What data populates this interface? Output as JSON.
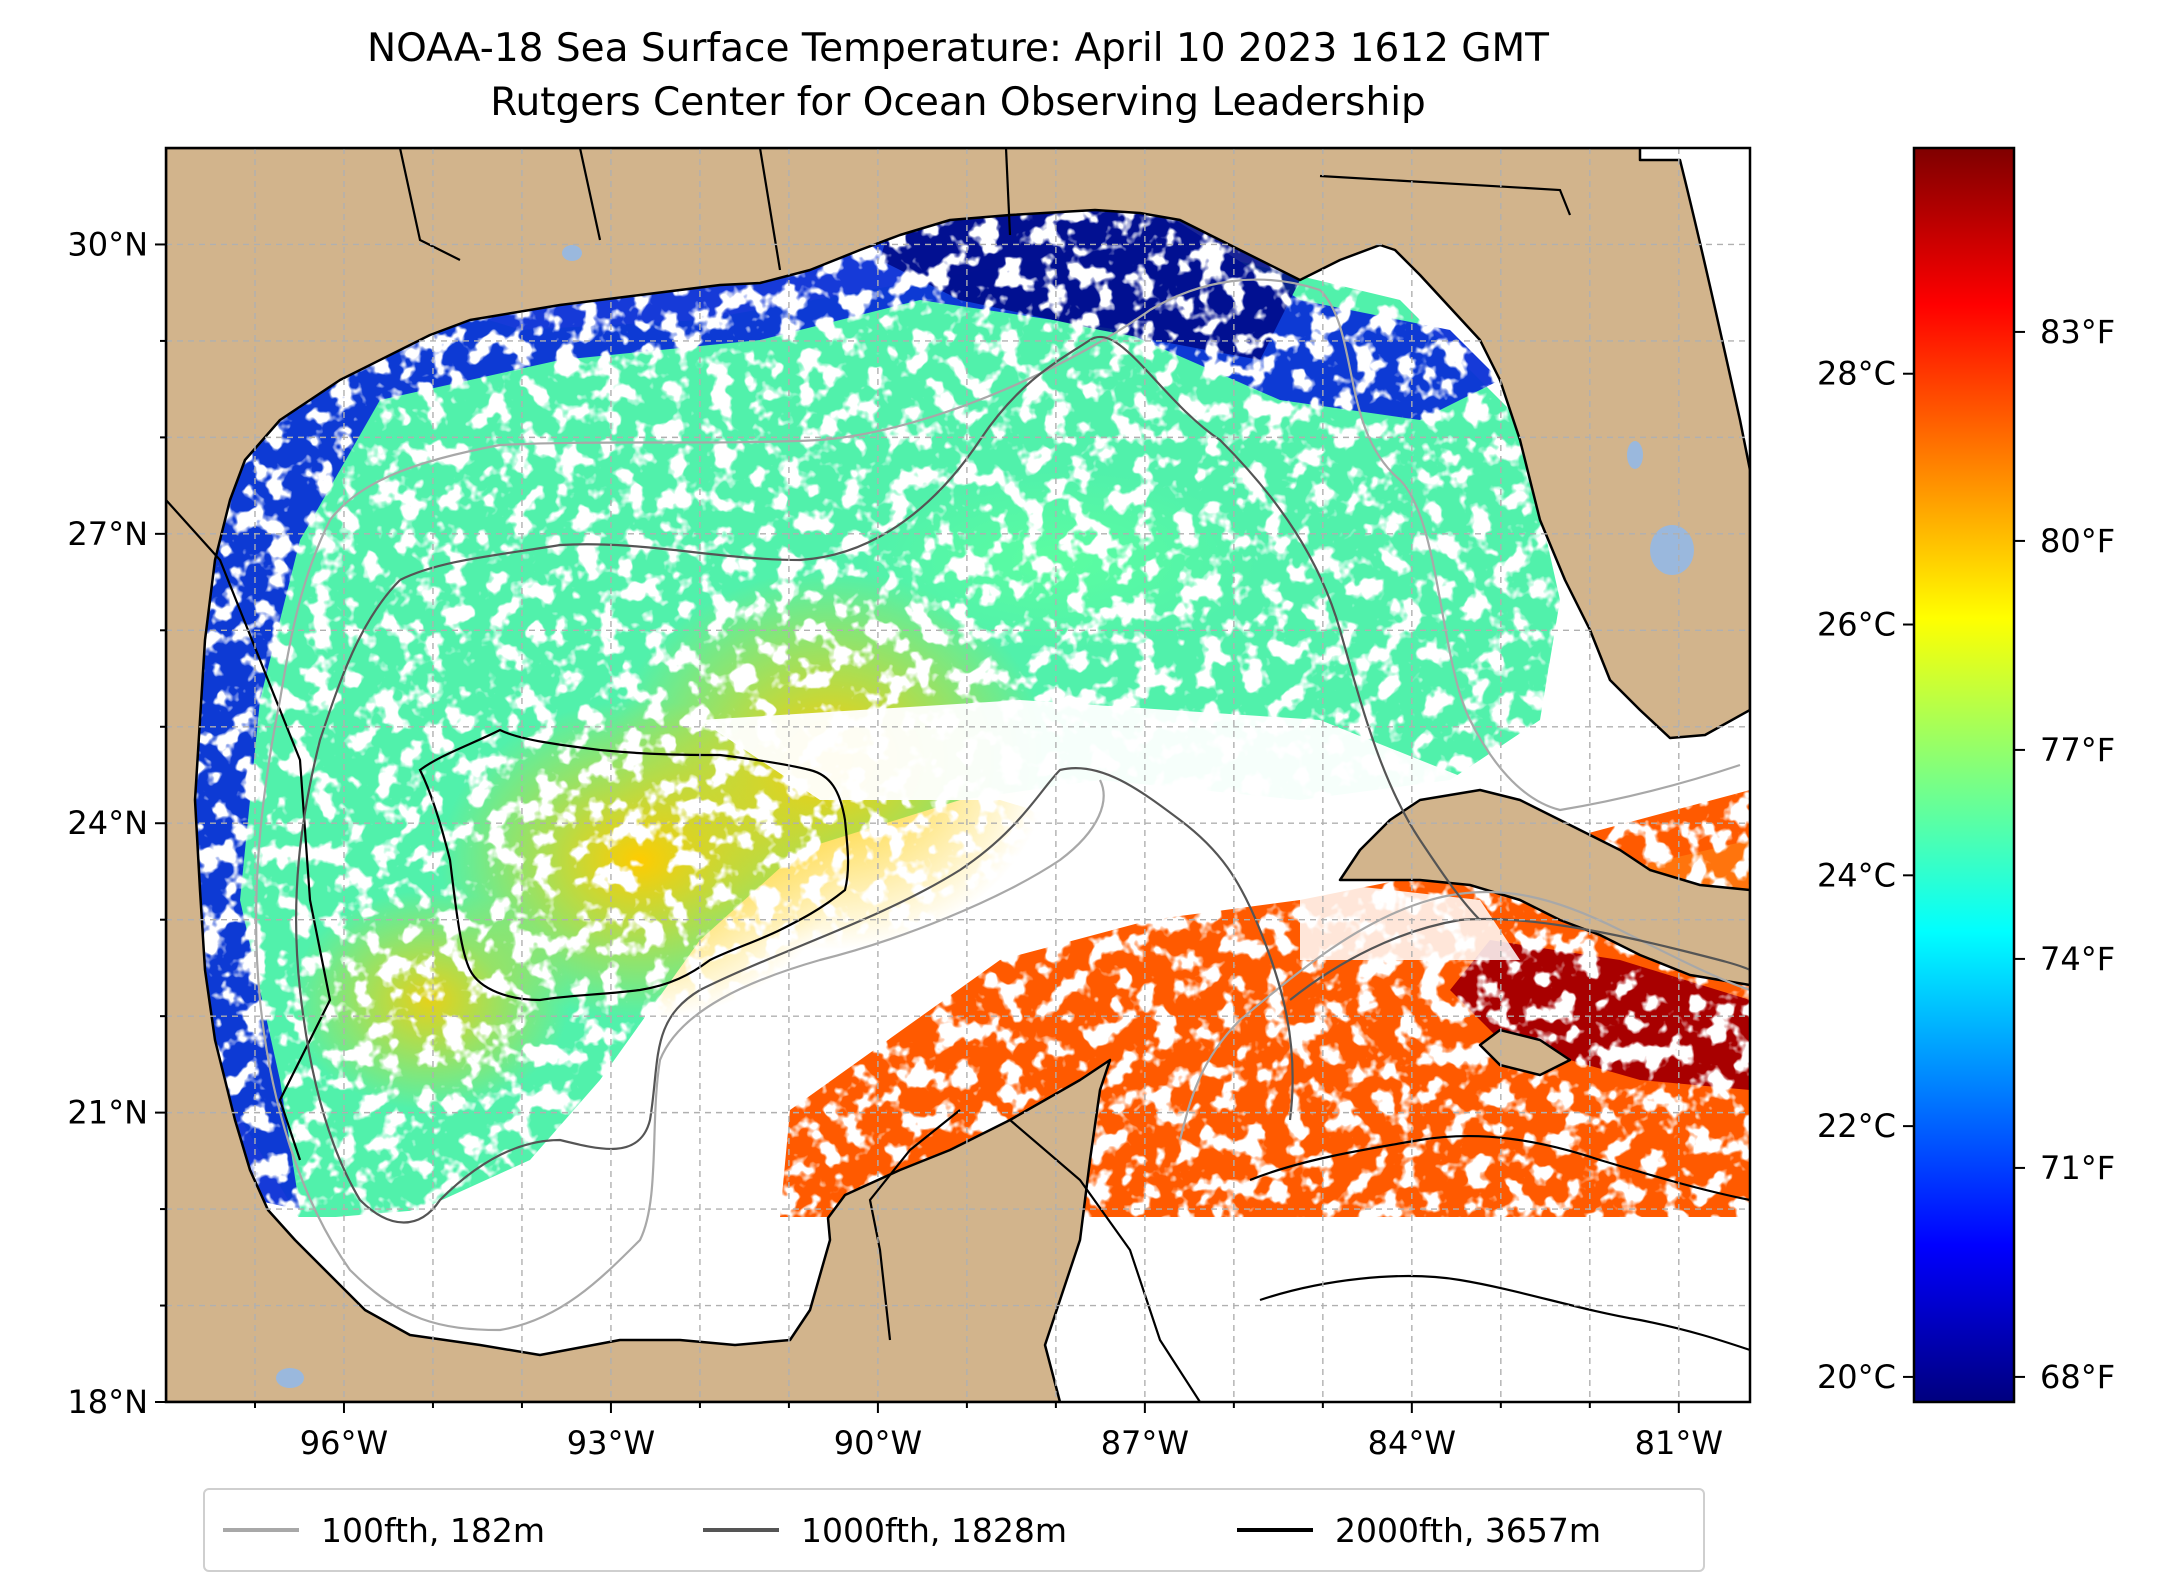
{
  "title": {
    "line1": "NOAA-18 Sea Surface Temperature: April 10 2023 1612 GMT",
    "line2": "Rutgers Center for Ocean Observing Leadership"
  },
  "map": {
    "lon_range": [
      -98,
      -80.2
    ],
    "lat_range": [
      18,
      31
    ],
    "colors": {
      "land": "#d2b48c",
      "no_data": "#ffffff",
      "lakes": "#9ab8dd",
      "gridline": "#b0b0b0"
    },
    "lon_ticks": [
      {
        "value": -96,
        "label": "96°W"
      },
      {
        "value": -93,
        "label": "93°W"
      },
      {
        "value": -90,
        "label": "90°W"
      },
      {
        "value": -87,
        "label": "87°W"
      },
      {
        "value": -84,
        "label": "84°W"
      },
      {
        "value": -81,
        "label": "81°W"
      }
    ],
    "lat_ticks": [
      {
        "value": 18,
        "label": "18°N"
      },
      {
        "value": 21,
        "label": "21°N"
      },
      {
        "value": 24,
        "label": "24°N"
      },
      {
        "value": 27,
        "label": "27°N"
      },
      {
        "value": 30,
        "label": "30°N"
      }
    ],
    "data_gap_below_lat": 20
  },
  "colorbar": {
    "colormap": "jet",
    "range_c": [
      19.8,
      29.8
    ],
    "celsius_ticks": [
      {
        "value": 20,
        "label": "20°C"
      },
      {
        "value": 22,
        "label": "22°C"
      },
      {
        "value": 24,
        "label": "24°C"
      },
      {
        "value": 26,
        "label": "26°C"
      },
      {
        "value": 28,
        "label": "28°C"
      }
    ],
    "fahrenheit_ticks": [
      {
        "value": 68,
        "label": "68°F"
      },
      {
        "value": 71,
        "label": "71°F"
      },
      {
        "value": 74,
        "label": "74°F"
      },
      {
        "value": 77,
        "label": "77°F"
      },
      {
        "value": 80,
        "label": "80°F"
      },
      {
        "value": 83,
        "label": "83°F"
      }
    ]
  },
  "legend": {
    "items": [
      {
        "label": "100fth, 182m",
        "color": "#a8a8a8"
      },
      {
        "label": "1000fth, 1828m",
        "color": "#555555"
      },
      {
        "label": "2000fth, 3657m",
        "color": "#000000"
      }
    ]
  }
}
